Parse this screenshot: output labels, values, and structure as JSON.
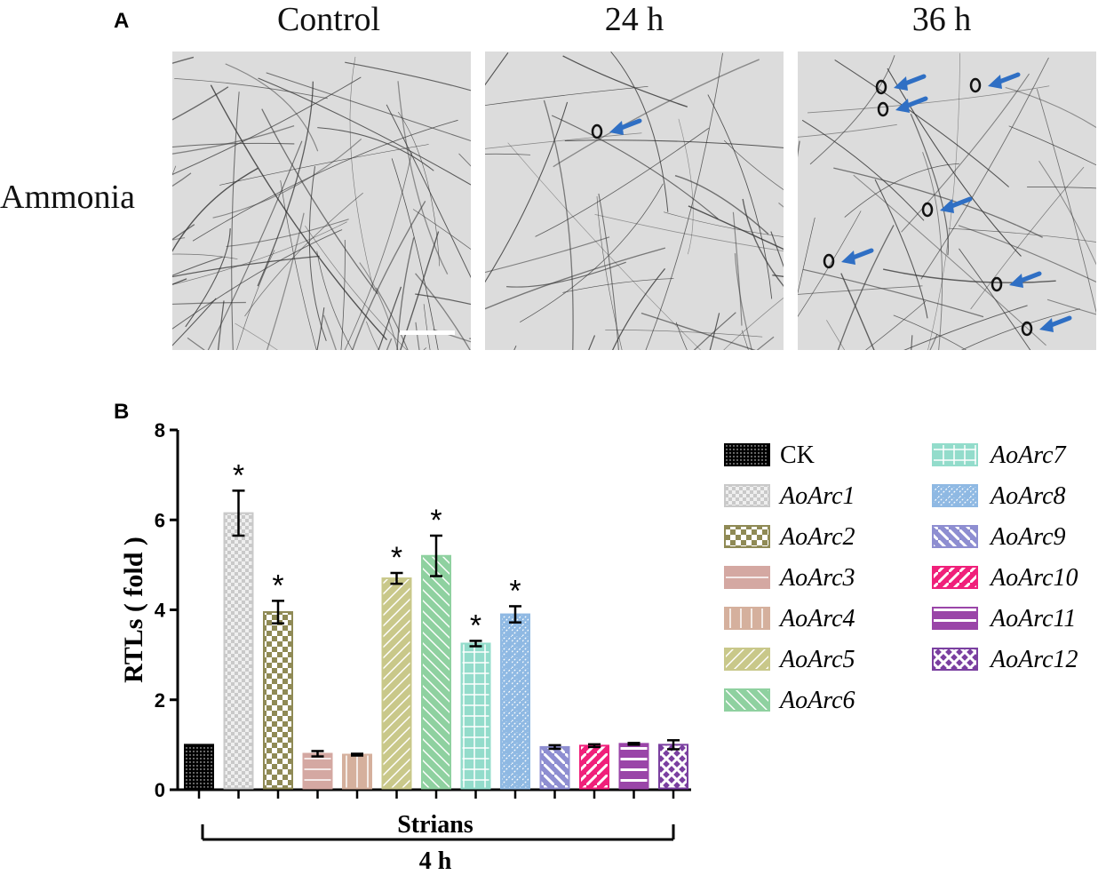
{
  "panel_a": {
    "letter": "A",
    "columns": [
      "Control",
      "24 h",
      "36 h"
    ],
    "row_label": "Ammonia"
  },
  "panel_b": {
    "letter": "B"
  },
  "colors": {
    "CK": "#000000",
    "AoArc1": "#c9c9c9",
    "AoArc2": "#8f8a55",
    "AoArc3": "#d4a8a2",
    "AoArc4": "#d5b09d",
    "AoArc5": "#c9c88a",
    "AoArc6": "#8fd1a0",
    "AoArc7": "#93dccb",
    "AoArc8": "#8fb9e3",
    "AoArc9": "#8e8ed1",
    "AoArc10": "#f0207a",
    "AoArc11": "#9a45a8",
    "AoArc12": "#7a3fa0",
    "arrow": "#2f6fc4"
  },
  "chart_data": {
    "type": "bar",
    "ylabel": "RTLs ( fold )",
    "xlabel": "Strians",
    "group_label": "4 h",
    "ylim": [
      0,
      8
    ],
    "yticks": [
      "0",
      "2",
      "4",
      "6",
      "8"
    ],
    "categories": [
      "CK",
      "AoArc1",
      "AoArc2",
      "AoArc3",
      "AoArc4",
      "AoArc5",
      "AoArc6",
      "AoArc7",
      "AoArc8",
      "AoArc9",
      "AoArc10",
      "AoArc11",
      "AoArc12"
    ],
    "values": [
      1.0,
      6.15,
      3.95,
      0.8,
      0.78,
      4.7,
      5.2,
      3.25,
      3.9,
      0.95,
      0.98,
      1.02,
      1.0
    ],
    "errors": [
      0.0,
      0.5,
      0.25,
      0.06,
      0.02,
      0.12,
      0.45,
      0.06,
      0.18,
      0.04,
      0.03,
      0.02,
      0.1
    ],
    "significant": [
      false,
      true,
      true,
      false,
      false,
      true,
      true,
      true,
      true,
      false,
      false,
      false,
      false
    ],
    "significance_mark": "*",
    "legend": [
      "CK",
      "AoArc1",
      "AoArc2",
      "AoArc3",
      "AoArc4",
      "AoArc5",
      "AoArc6",
      "AoArc7",
      "AoArc8",
      "AoArc9",
      "AoArc10",
      "AoArc11",
      "AoArc12"
    ],
    "legend_placement": "right",
    "grid": false
  }
}
